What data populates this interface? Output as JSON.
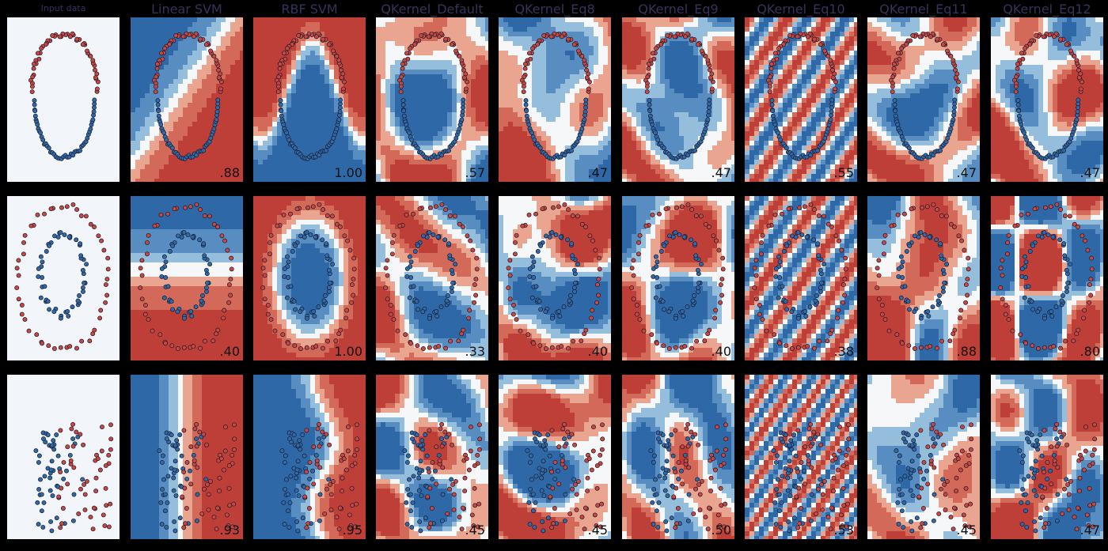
{
  "colors": {
    "positive": "#c9473f",
    "negative": "#2f6aa8",
    "background": "#000000",
    "title": "#36335a",
    "input_bg": "#f2f6fa"
  },
  "columns": [
    "Input data",
    "Linear SVM",
    "RBF SVM",
    "QKernel_Default",
    "QKernel_Eq8",
    "QKernel_Eq9",
    "QKernel_Eq10",
    "QKernel_Eq11",
    "QKernel_Eq12"
  ],
  "chart_data": [
    {
      "type": "scatter",
      "dataset": "moons",
      "panels": [
        {
          "column": "Input data",
          "score": ""
        },
        {
          "column": "Linear SVM",
          "score": ".88"
        },
        {
          "column": "RBF SVM",
          "score": "1.00"
        },
        {
          "column": "QKernel_Default",
          "score": ".57"
        },
        {
          "column": "QKernel_Eq8",
          "score": ".47"
        },
        {
          "column": "QKernel_Eq9",
          "score": ".47"
        },
        {
          "column": "QKernel_Eq10",
          "score": ".55"
        },
        {
          "column": "QKernel_Eq11",
          "score": ".47"
        },
        {
          "column": "QKernel_Eq12",
          "score": ".47"
        }
      ]
    },
    {
      "type": "scatter",
      "dataset": "circles",
      "panels": [
        {
          "column": "Input data",
          "score": ""
        },
        {
          "column": "Linear SVM",
          "score": ".40"
        },
        {
          "column": "RBF SVM",
          "score": "1.00"
        },
        {
          "column": "QKernel_Default",
          "score": ".33"
        },
        {
          "column": "QKernel_Eq8",
          "score": ".40"
        },
        {
          "column": "QKernel_Eq9",
          "score": ".40"
        },
        {
          "column": "QKernel_Eq10",
          "score": ".38"
        },
        {
          "column": "QKernel_Eq11",
          "score": ".88"
        },
        {
          "column": "QKernel_Eq12",
          "score": ".80"
        }
      ]
    },
    {
      "type": "scatter",
      "dataset": "linearly_separable",
      "panels": [
        {
          "column": "Input data",
          "score": ""
        },
        {
          "column": "Linear SVM",
          "score": ".93"
        },
        {
          "column": "RBF SVM",
          "score": ".95"
        },
        {
          "column": "QKernel_Default",
          "score": ".45"
        },
        {
          "column": "QKernel_Eq8",
          "score": ".45"
        },
        {
          "column": "QKernel_Eq9",
          "score": ".50"
        },
        {
          "column": "QKernel_Eq10",
          "score": ".53"
        },
        {
          "column": "QKernel_Eq11",
          "score": ".45"
        },
        {
          "column": "QKernel_Eq12",
          "score": ".47"
        }
      ]
    }
  ]
}
